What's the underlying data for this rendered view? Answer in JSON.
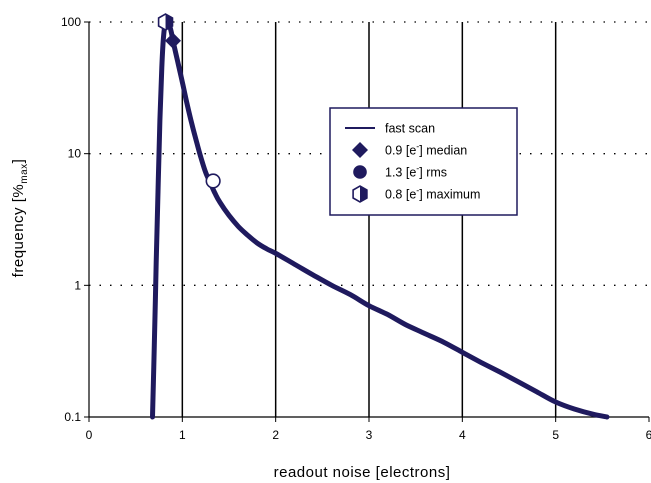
{
  "chart_data": {
    "type": "line",
    "xlabel": "readout noise [electrons]",
    "ylabel": {
      "main": "frequency [%",
      "sub": "max",
      "close": "]"
    },
    "xlim": [
      0,
      6
    ],
    "ylim": [
      0.1,
      100
    ],
    "yscale": "log",
    "x_ticks": [
      "0",
      "1",
      "2",
      "3",
      "4",
      "5",
      "6"
    ],
    "y_ticks": [
      "0.1",
      "1",
      "10",
      "100"
    ],
    "grid": {
      "x": "solid vertical at integer ticks",
      "y": "dotted at decades"
    },
    "colors": {
      "series": "#1f1a5e",
      "axis": "#000000",
      "grid": "#000000"
    },
    "legend": {
      "position": "center-right",
      "entries": [
        {
          "symbol": "line",
          "text": "fast scan"
        },
        {
          "symbol": "diamond",
          "pre": "0.9 [e",
          "sup": "-",
          "post": "] median"
        },
        {
          "symbol": "circle",
          "pre": "1.3 [e",
          "sup": "-",
          "post": "] rms"
        },
        {
          "symbol": "hexagon-half",
          "pre": "0.8 [e",
          "sup": "-",
          "post": "] maximum"
        }
      ]
    },
    "series": [
      {
        "name": "fast scan",
        "x": [
          0.68,
          0.7,
          0.72,
          0.74,
          0.76,
          0.78,
          0.8,
          0.82,
          0.84,
          0.86,
          0.88,
          0.9,
          0.95,
          1.0,
          1.05,
          1.1,
          1.15,
          1.2,
          1.25,
          1.3,
          1.35,
          1.4,
          1.5,
          1.6,
          1.7,
          1.8,
          1.9,
          2.0,
          2.2,
          2.4,
          2.6,
          2.8,
          3.0,
          3.2,
          3.4,
          3.6,
          3.8,
          4.0,
          4.2,
          4.4,
          4.6,
          4.8,
          5.0,
          5.2,
          5.4,
          5.55
        ],
        "y": [
          0.1,
          0.35,
          1.5,
          5.5,
          18,
          45,
          80,
          98,
          100,
          95,
          85,
          72,
          50,
          35,
          24,
          17,
          12.5,
          9.3,
          7.2,
          6.0,
          5.0,
          4.3,
          3.4,
          2.8,
          2.4,
          2.1,
          1.9,
          1.75,
          1.45,
          1.2,
          1.0,
          0.85,
          0.7,
          0.6,
          0.5,
          0.43,
          0.37,
          0.31,
          0.26,
          0.22,
          0.185,
          0.155,
          0.13,
          0.115,
          0.105,
          0.1
        ]
      }
    ],
    "markers": [
      {
        "symbol": "hexagon-half",
        "x": 0.82,
        "y": 100
      },
      {
        "symbol": "diamond",
        "x": 0.9,
        "y": 72
      },
      {
        "symbol": "circle",
        "x": 1.33,
        "y": 6.2
      }
    ]
  }
}
